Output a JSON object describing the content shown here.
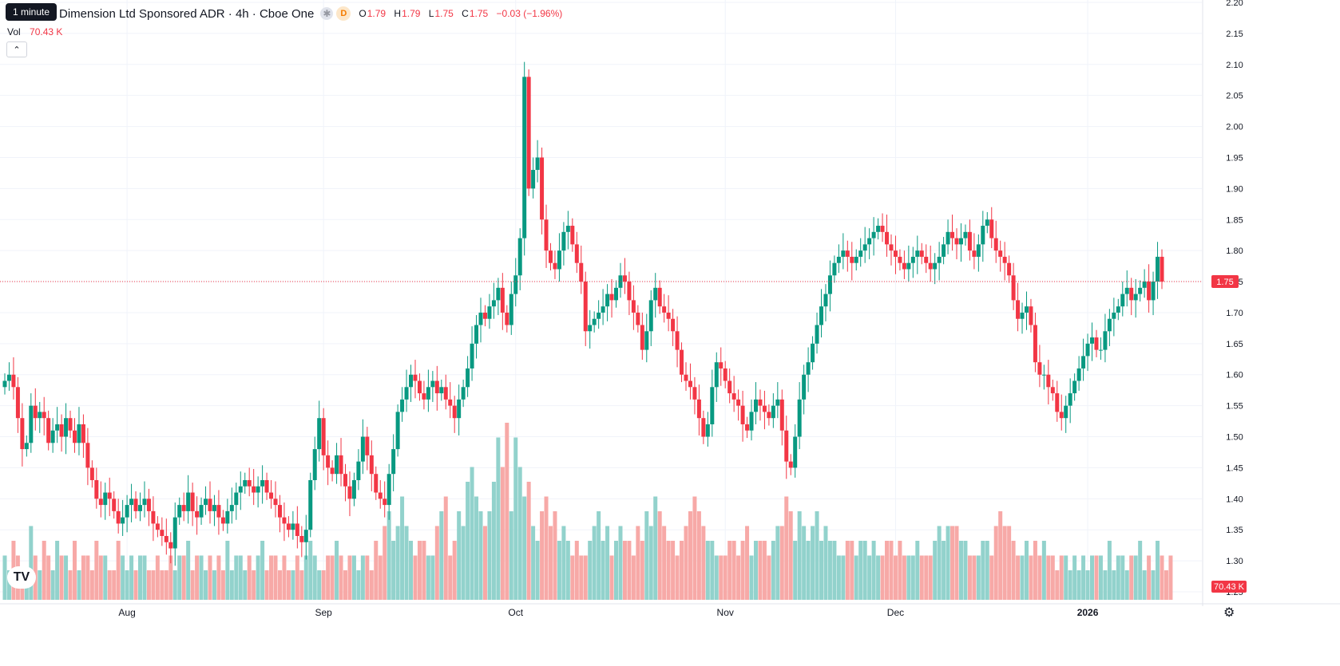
{
  "header": {
    "tooltip": "1 minute",
    "title": "Dimension Ltd Sponsored ADR · 4h · Cboe One",
    "badge_d": "D",
    "ohlc": [
      {
        "k": "O",
        "v": "1.79"
      },
      {
        "k": "H",
        "v": "1.79"
      },
      {
        "k": "L",
        "v": "1.75"
      },
      {
        "k": "C",
        "v": "1.75"
      },
      {
        "k": "",
        "v": "−0.03 (−1.96%)"
      }
    ],
    "vol_label": "Vol",
    "vol_value": "70.43 K"
  },
  "colors": {
    "up": "#089981",
    "down": "#f23645",
    "up_vol": "#92d2cc",
    "down_vol": "#f7a9a7",
    "grid": "#f0f3fa",
    "text": "#131722"
  },
  "chart_data": {
    "type": "candlestick",
    "price_axis": {
      "min": 1.25,
      "max": 2.2,
      "ticks": [
        "2.20",
        "2.15",
        "2.10",
        "2.05",
        "2.00",
        "1.95",
        "1.90",
        "1.85",
        "1.80",
        "1.75",
        "1.70",
        "1.65",
        "1.60",
        "1.55",
        "1.50",
        "1.45",
        "1.40",
        "1.35",
        "1.30",
        "1.25"
      ]
    },
    "time_axis": [
      {
        "label": "Aug",
        "bar": 28
      },
      {
        "label": "Sep",
        "bar": 73
      },
      {
        "label": "Oct",
        "bar": 117
      },
      {
        "label": "Nov",
        "bar": 165
      },
      {
        "label": "Dec",
        "bar": 204
      },
      {
        "label": "2026",
        "bar": 248
      }
    ],
    "last_price": {
      "value": 1.75,
      "label": "1.75"
    },
    "last_volume": {
      "label": "70.43 K"
    },
    "close_series": [
      1.59,
      1.6,
      1.58,
      1.53,
      1.48,
      1.49,
      1.55,
      1.53,
      1.54,
      1.53,
      1.49,
      1.51,
      1.52,
      1.5,
      1.53,
      1.51,
      1.49,
      1.52,
      1.49,
      1.45,
      1.43,
      1.4,
      1.39,
      1.41,
      1.4,
      1.38,
      1.36,
      1.37,
      1.39,
      1.4,
      1.38,
      1.39,
      1.4,
      1.38,
      1.36,
      1.35,
      1.34,
      1.33,
      1.32,
      1.37,
      1.39,
      1.38,
      1.41,
      1.38,
      1.37,
      1.39,
      1.4,
      1.38,
      1.39,
      1.37,
      1.36,
      1.38,
      1.39,
      1.41,
      1.42,
      1.43,
      1.42,
      1.41,
      1.42,
      1.43,
      1.41,
      1.4,
      1.39,
      1.37,
      1.36,
      1.35,
      1.36,
      1.34,
      1.33,
      1.35,
      1.43,
      1.48,
      1.53,
      1.47,
      1.45,
      1.44,
      1.47,
      1.44,
      1.42,
      1.4,
      1.43,
      1.46,
      1.5,
      1.47,
      1.44,
      1.41,
      1.4,
      1.39,
      1.44,
      1.48,
      1.54,
      1.56,
      1.58,
      1.6,
      1.59,
      1.57,
      1.56,
      1.58,
      1.59,
      1.57,
      1.58,
      1.56,
      1.55,
      1.53,
      1.56,
      1.58,
      1.61,
      1.65,
      1.68,
      1.7,
      1.69,
      1.71,
      1.72,
      1.74,
      1.7,
      1.68,
      1.73,
      1.76,
      1.82,
      2.08,
      1.9,
      1.93,
      1.95,
      1.85,
      1.8,
      1.78,
      1.77,
      1.8,
      1.83,
      1.84,
      1.81,
      1.78,
      1.75,
      1.67,
      1.68,
      1.69,
      1.7,
      1.71,
      1.73,
      1.72,
      1.74,
      1.76,
      1.75,
      1.72,
      1.7,
      1.68,
      1.64,
      1.67,
      1.72,
      1.74,
      1.71,
      1.7,
      1.69,
      1.67,
      1.64,
      1.6,
      1.59,
      1.58,
      1.56,
      1.53,
      1.5,
      1.52,
      1.58,
      1.62,
      1.61,
      1.59,
      1.57,
      1.56,
      1.55,
      1.52,
      1.51,
      1.54,
      1.56,
      1.55,
      1.54,
      1.53,
      1.55,
      1.56,
      1.51,
      1.46,
      1.45,
      1.5,
      1.56,
      1.6,
      1.62,
      1.65,
      1.68,
      1.71,
      1.73,
      1.76,
      1.78,
      1.79,
      1.8,
      1.79,
      1.78,
      1.79,
      1.8,
      1.81,
      1.82,
      1.83,
      1.84,
      1.83,
      1.81,
      1.8,
      1.79,
      1.78,
      1.77,
      1.78,
      1.79,
      1.8,
      1.79,
      1.78,
      1.77,
      1.78,
      1.79,
      1.81,
      1.83,
      1.82,
      1.81,
      1.82,
      1.83,
      1.8,
      1.79,
      1.81,
      1.84,
      1.85,
      1.82,
      1.8,
      1.79,
      1.78,
      1.76,
      1.72,
      1.69,
      1.7,
      1.71,
      1.68,
      1.62,
      1.6,
      1.6,
      1.58,
      1.57,
      1.54,
      1.53,
      1.55,
      1.57,
      1.59,
      1.61,
      1.63,
      1.65,
      1.66,
      1.64,
      1.64,
      1.67,
      1.69,
      1.7,
      1.71,
      1.73,
      1.74,
      1.72,
      1.73,
      1.74,
      1.75,
      1.72,
      1.75,
      1.79,
      1.75
    ],
    "volume_series": [
      3,
      2,
      4,
      3,
      2,
      2,
      5,
      3,
      2,
      4,
      3,
      2,
      4,
      3,
      3,
      2,
      4,
      2,
      3,
      3,
      2,
      4,
      3,
      3,
      2,
      2,
      4,
      3,
      2,
      3,
      2,
      3,
      3,
      2,
      2,
      3,
      2,
      2,
      3,
      2,
      3,
      3,
      4,
      2,
      3,
      3,
      2,
      3,
      2,
      3,
      2,
      4,
      2,
      3,
      3,
      2,
      3,
      2,
      3,
      4,
      2,
      3,
      3,
      2,
      3,
      2,
      2,
      3,
      2,
      3,
      4,
      3,
      2,
      2,
      3,
      3,
      4,
      3,
      2,
      3,
      3,
      2,
      3,
      3,
      2,
      4,
      3,
      5,
      6,
      4,
      5,
      7,
      5,
      4,
      3,
      4,
      4,
      3,
      3,
      5,
      6,
      7,
      3,
      4,
      6,
      5,
      8,
      9,
      7,
      6,
      5,
      6,
      8,
      11,
      9,
      12,
      6,
      11,
      9,
      7,
      8,
      5,
      4,
      6,
      7,
      5,
      6,
      4,
      5,
      4,
      3,
      4,
      3,
      3,
      4,
      5,
      6,
      4,
      5,
      3,
      4,
      5,
      4,
      4,
      3,
      5,
      4,
      6,
      5,
      7,
      6,
      5,
      4,
      4,
      3,
      4,
      5,
      6,
      7,
      6,
      5,
      4,
      4,
      3,
      3,
      3,
      4,
      4,
      3,
      4,
      5,
      3,
      4,
      4,
      4,
      3,
      4,
      5,
      5,
      7,
      6,
      4,
      6,
      5,
      4,
      5,
      6,
      4,
      5,
      4,
      4,
      3,
      3,
      4,
      4,
      3,
      4,
      4,
      3,
      4,
      3,
      3,
      4,
      4,
      3,
      4,
      3,
      3,
      3,
      4,
      3,
      3,
      3,
      4,
      5,
      4,
      5,
      5,
      5,
      4,
      4,
      3,
      3,
      3,
      4,
      4,
      3,
      5,
      6,
      5,
      5,
      4,
      3,
      3,
      4,
      3,
      4,
      3,
      4,
      3,
      3,
      2,
      3,
      3,
      2,
      3,
      2,
      3,
      2,
      3,
      3,
      3,
      2,
      4,
      2,
      3,
      3,
      2,
      3,
      3,
      4,
      2,
      3,
      2,
      4,
      3,
      2,
      3
    ]
  }
}
